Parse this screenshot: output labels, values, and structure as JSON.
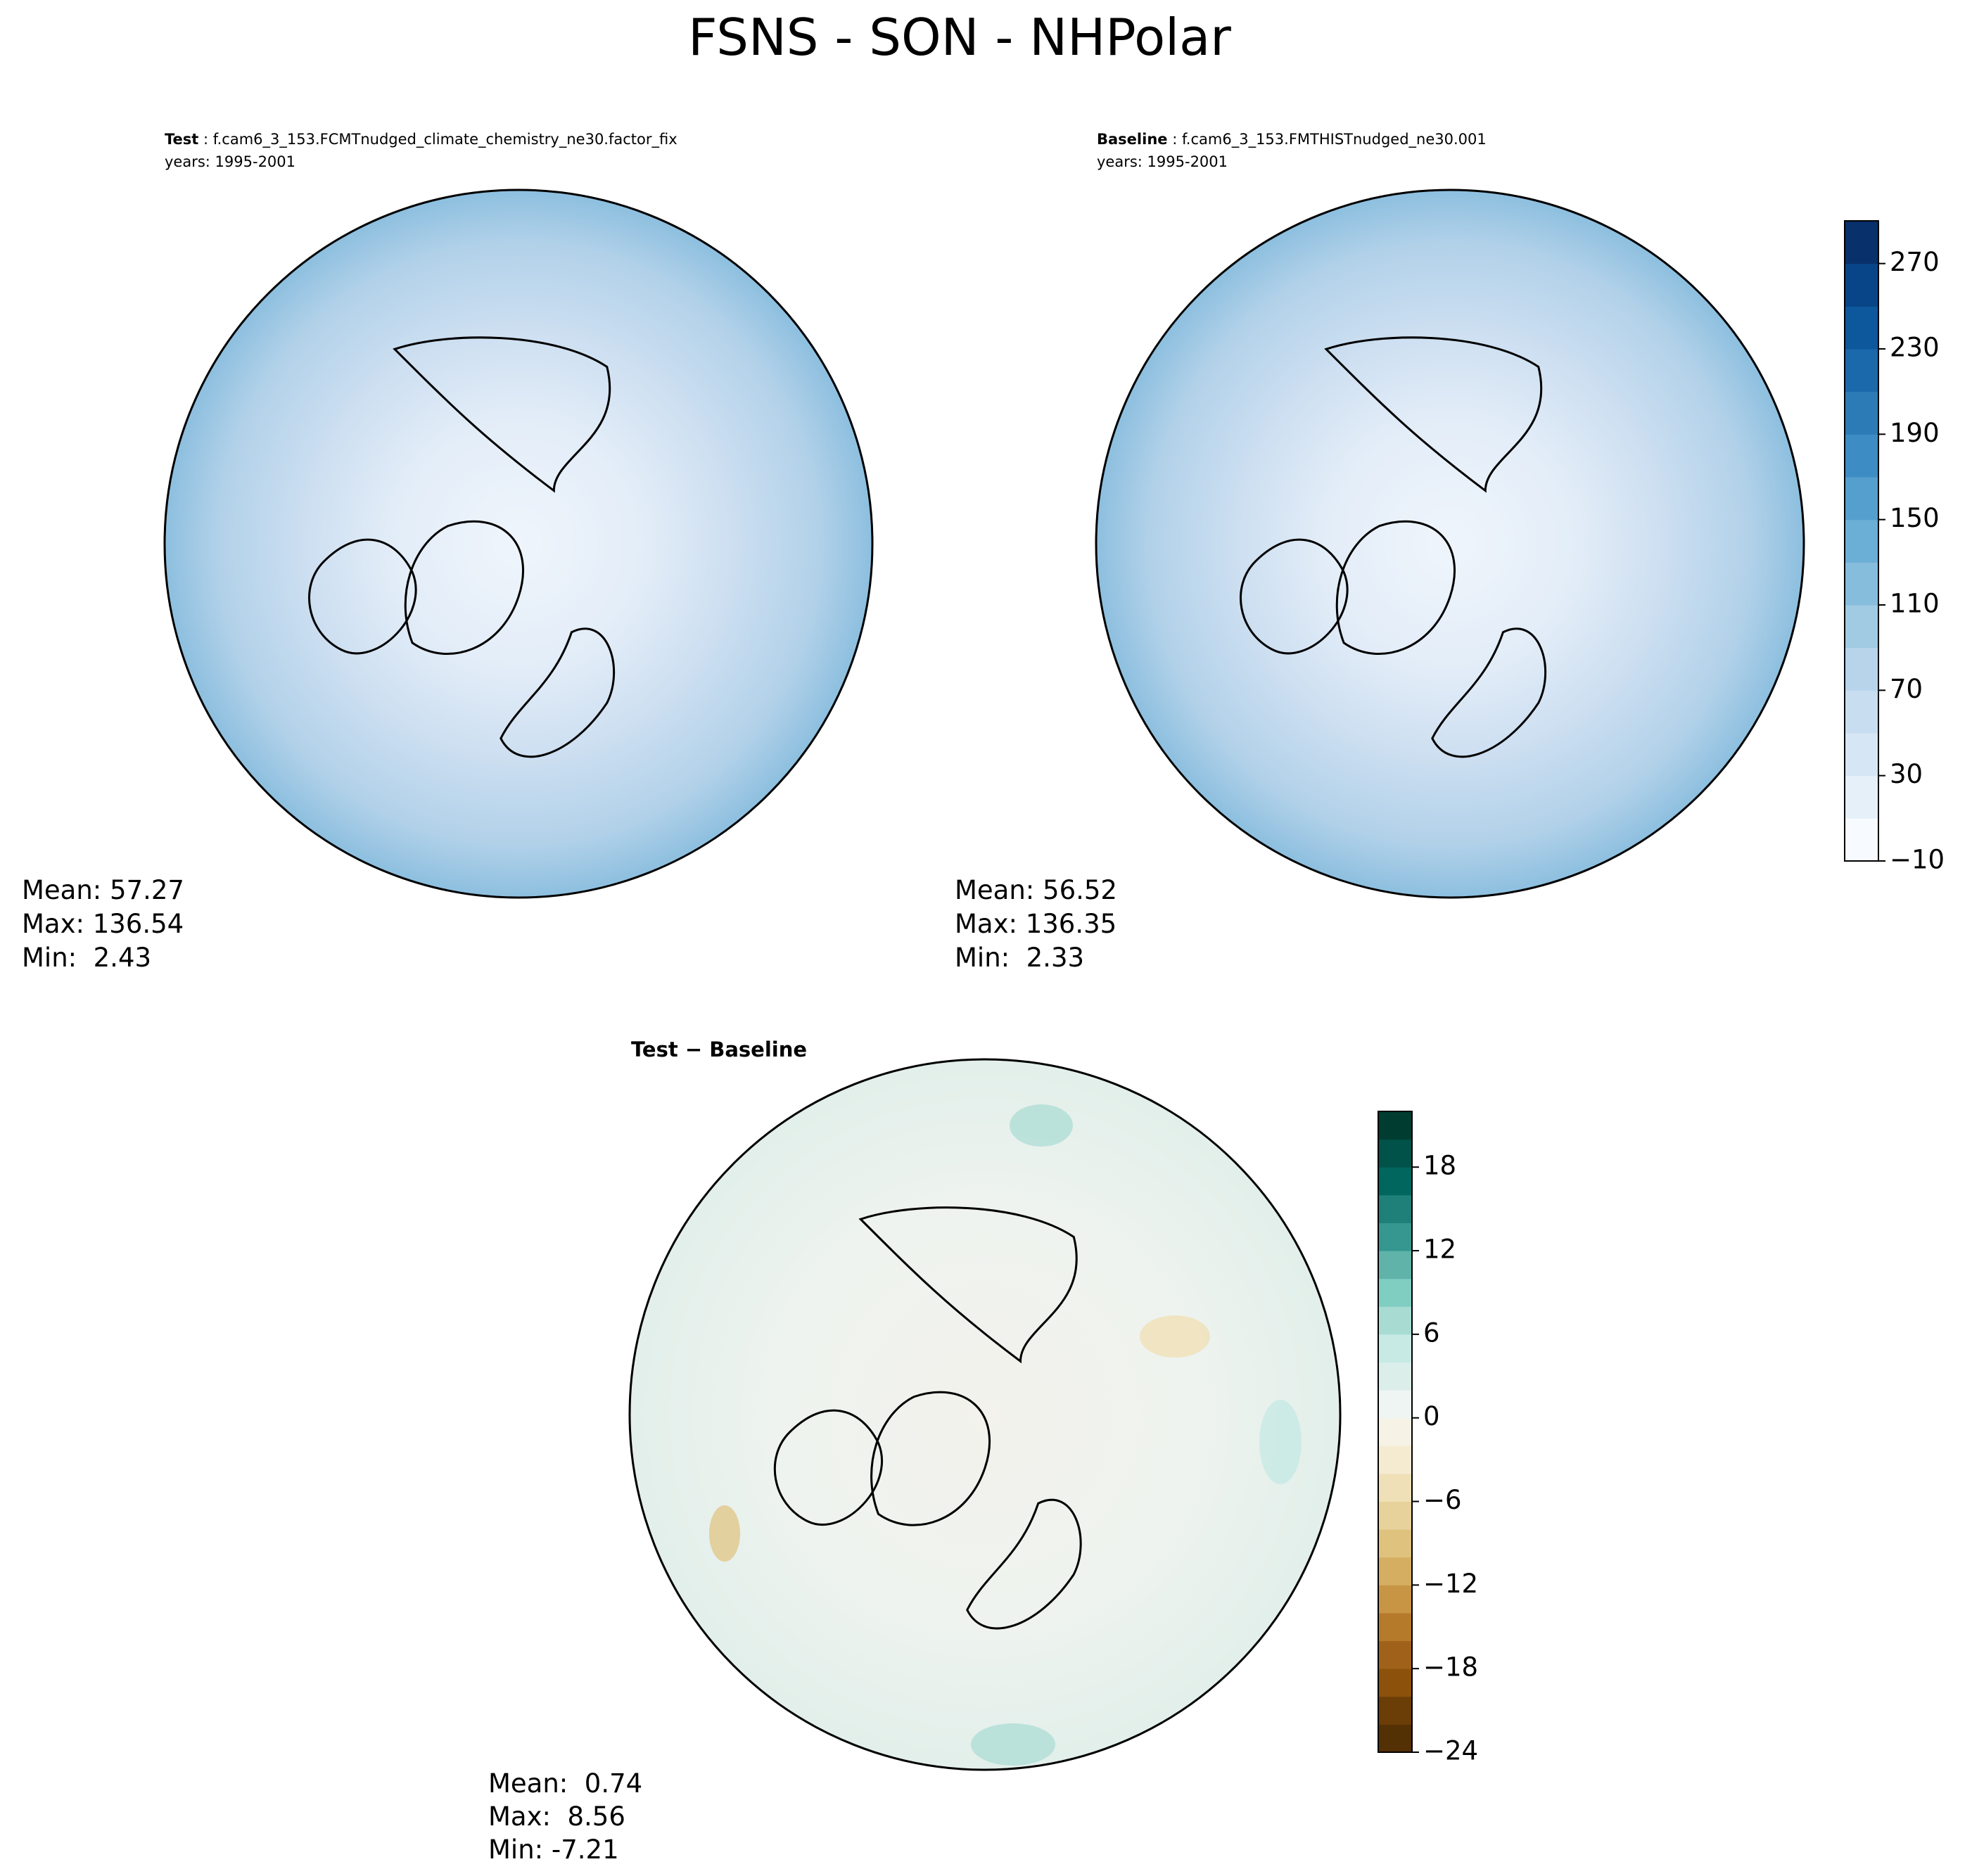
{
  "title": "FSNS - SON - NHPolar",
  "panels": [
    {
      "header": {
        "bold": "Test",
        "rest": " : f.cam6_3_153.FCMTnudged_climate_chemistry_ne30.factor_fix"
      },
      "years": "years: 1995-2001",
      "stats": [
        "Mean: 57.27",
        "Max: 136.54",
        "Min:  2.43"
      ]
    },
    {
      "header": {
        "bold": "Baseline",
        "rest": " : f.cam6_3_153.FMTHISTnudged_ne30.001"
      },
      "years": "years: 1995-2001",
      "stats": [
        "Mean: 56.52",
        "Max: 136.35",
        "Min:  2.33"
      ]
    },
    {
      "header": {
        "bold": "Test − Baseline",
        "rest": ""
      },
      "stats": [
        "Mean:  0.74",
        "Max:  8.56",
        "Min: -7.21"
      ]
    }
  ],
  "colorbars": [
    {
      "lim": [
        -10,
        290
      ],
      "ticks": [
        {
          "value": -10,
          "label": "−10"
        },
        30,
        70,
        110,
        150,
        190,
        230,
        270
      ],
      "colors": [
        "#f7fbff",
        "#e6f0f9",
        "#d6e6f4",
        "#c8ddf0",
        "#b7d4ea",
        "#a0cbe2",
        "#87bddc",
        "#6baed6",
        "#549fcd",
        "#3d8dc4",
        "#2c7bb6",
        "#1b68ab",
        "#0d579c",
        "#084488",
        "#08306b"
      ]
    },
    {
      "lim": [
        -24,
        22
      ],
      "ticks": [
        {
          "value": -24,
          "label": "−24"
        },
        {
          "value": -18,
          "label": "−18"
        },
        {
          "value": -12,
          "label": "−12"
        },
        {
          "value": -6,
          "label": "−6"
        },
        0,
        6,
        12,
        18
      ],
      "colors": [
        "#543005",
        "#6b3d07",
        "#8c510a",
        "#a0621a",
        "#b57b2b",
        "#c79544",
        "#d6ae62",
        "#dfc27d",
        "#e8d29c",
        "#f0e0b7",
        "#f5ebd1",
        "#f6f2e6",
        "#eef5f3",
        "#dbeeea",
        "#c7eae5",
        "#a8dcd3",
        "#80cdc1",
        "#5fb3a9",
        "#35978f",
        "#1e8078",
        "#01665e",
        "#01534a",
        "#003c30"
      ]
    }
  ]
}
